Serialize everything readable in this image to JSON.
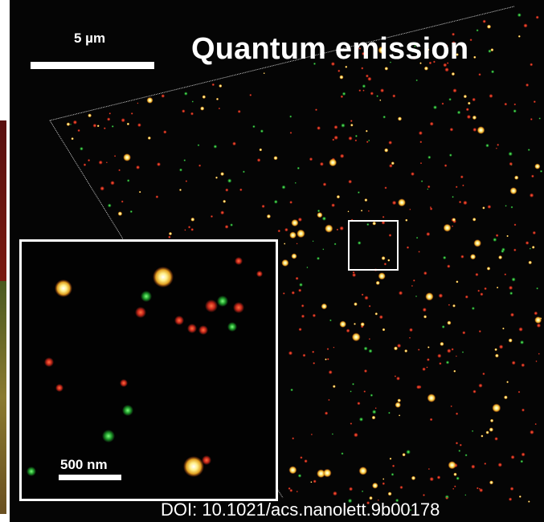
{
  "title": "Quantum emission",
  "main_scale_label": "5 µm",
  "inset_scale_label": "500 nm",
  "doi": "DOI: 10.1021/acs.nanolett.9b00178",
  "colors": {
    "background": "#050505",
    "red_emitter": "#d8301e",
    "green_emitter": "#2fbf3a",
    "yellow_emitter": "#ffe36a",
    "text": "#ffffff"
  }
}
